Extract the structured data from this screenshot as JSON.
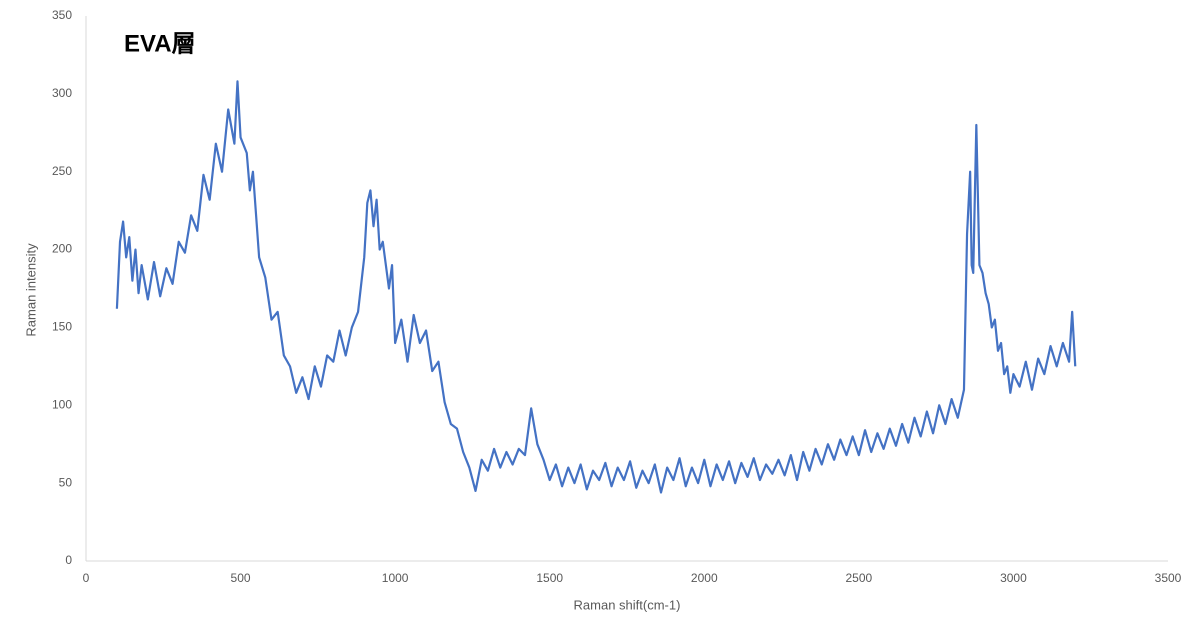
{
  "chart_data": {
    "type": "line",
    "title": "EVA層",
    "x_label": "Raman shift(cm-1)",
    "y_label": "Raman intensity",
    "x": [
      100,
      110,
      120,
      130,
      140,
      150,
      160,
      170,
      180,
      200,
      220,
      240,
      260,
      280,
      300,
      320,
      340,
      360,
      380,
      400,
      420,
      440,
      460,
      480,
      490,
      500,
      520,
      530,
      540,
      560,
      580,
      600,
      620,
      640,
      660,
      680,
      700,
      720,
      740,
      760,
      780,
      800,
      820,
      840,
      860,
      880,
      900,
      910,
      920,
      930,
      940,
      950,
      960,
      980,
      990,
      1000,
      1020,
      1040,
      1060,
      1080,
      1100,
      1120,
      1140,
      1160,
      1180,
      1200,
      1220,
      1240,
      1260,
      1280,
      1300,
      1320,
      1340,
      1360,
      1380,
      1400,
      1420,
      1440,
      1460,
      1480,
      1500,
      1520,
      1540,
      1560,
      1580,
      1600,
      1620,
      1640,
      1660,
      1680,
      1700,
      1720,
      1740,
      1760,
      1780,
      1800,
      1820,
      1840,
      1860,
      1880,
      1900,
      1920,
      1940,
      1960,
      1980,
      2000,
      2020,
      2040,
      2060,
      2080,
      2100,
      2120,
      2140,
      2160,
      2180,
      2200,
      2220,
      2240,
      2260,
      2280,
      2300,
      2320,
      2340,
      2360,
      2380,
      2400,
      2420,
      2440,
      2460,
      2480,
      2500,
      2520,
      2540,
      2560,
      2580,
      2600,
      2620,
      2640,
      2660,
      2680,
      2700,
      2720,
      2740,
      2760,
      2780,
      2800,
      2820,
      2840,
      2850,
      2860,
      2865,
      2870,
      2880,
      2890,
      2900,
      2910,
      2920,
      2930,
      2940,
      2950,
      2960,
      2970,
      2980,
      2990,
      3000,
      3020,
      3040,
      3060,
      3080,
      3100,
      3120,
      3140,
      3160,
      3180,
      3190,
      3200
    ],
    "series": [
      {
        "color": "#4472c4",
        "values": [
          162,
          205,
          218,
          195,
          208,
          180,
          200,
          172,
          190,
          168,
          192,
          170,
          188,
          178,
          205,
          198,
          222,
          212,
          248,
          232,
          268,
          250,
          290,
          268,
          308,
          272,
          262,
          238,
          250,
          195,
          182,
          155,
          160,
          132,
          125,
          108,
          118,
          104,
          125,
          112,
          132,
          128,
          148,
          132,
          150,
          160,
          195,
          230,
          238,
          215,
          232,
          200,
          205,
          175,
          190,
          140,
          155,
          128,
          158,
          140,
          148,
          122,
          128,
          102,
          88,
          85,
          70,
          60,
          45,
          65,
          58,
          72,
          60,
          70,
          62,
          72,
          68,
          98,
          75,
          65,
          52,
          62,
          48,
          60,
          50,
          62,
          46,
          58,
          52,
          63,
          48,
          60,
          52,
          64,
          47,
          58,
          50,
          62,
          44,
          60,
          52,
          66,
          48,
          60,
          50,
          65,
          48,
          62,
          52,
          64,
          50,
          63,
          54,
          66,
          52,
          62,
          56,
          65,
          55,
          68,
          52,
          70,
          58,
          72,
          62,
          75,
          65,
          78,
          68,
          80,
          68,
          84,
          70,
          82,
          72,
          85,
          74,
          88,
          76,
          92,
          80,
          96,
          82,
          100,
          88,
          104,
          92,
          110,
          210,
          250,
          190,
          185,
          280,
          190,
          185,
          172,
          165,
          150,
          155,
          135,
          140,
          120,
          125,
          108,
          120,
          112,
          128,
          110,
          130,
          120,
          138,
          125,
          140,
          128,
          160,
          125
        ]
      }
    ],
    "xlim": [
      0,
      3500
    ],
    "ylim": [
      0,
      350
    ],
    "xticks": [
      0,
      500,
      1000,
      1500,
      2000,
      2500,
      3000,
      3500
    ],
    "yticks": [
      0,
      50,
      100,
      150,
      200,
      250,
      300,
      350
    ]
  }
}
